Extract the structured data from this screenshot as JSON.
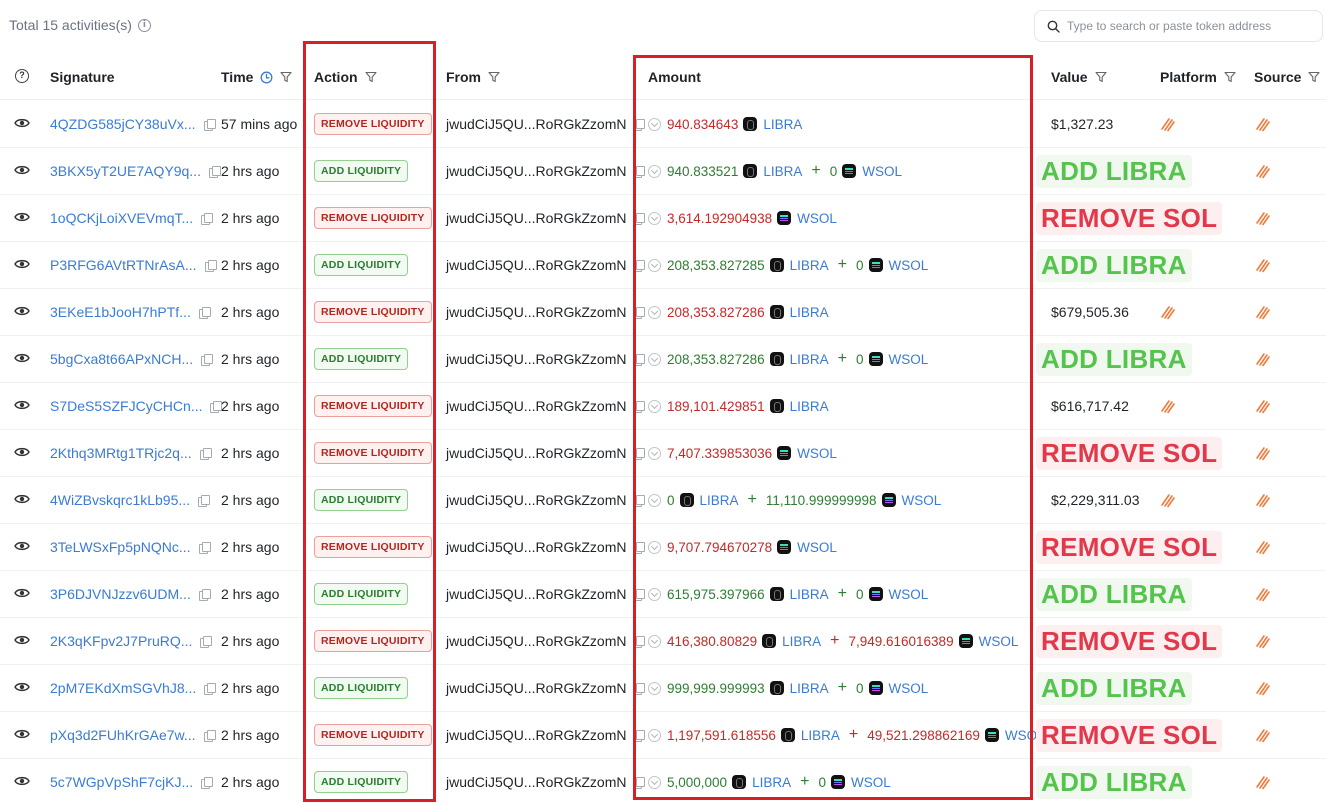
{
  "header": {
    "total_label": "Total 15 activities(s)",
    "search_placeholder": "Type to search or paste token address"
  },
  "columns": {
    "signature": "Signature",
    "time": "Time",
    "action": "Action",
    "from": "From",
    "amount": "Amount",
    "value": "Value",
    "platform": "Platform",
    "source": "Source"
  },
  "colors": {
    "link": "#3a7bd5",
    "remove": "#c62828",
    "add": "#2e7d32",
    "highlight": "#d81f26",
    "big_add": "#55c44d",
    "big_remove": "#e2384a"
  },
  "rows": [
    {
      "sig": "4QZDG585jCY38uVx...",
      "time": "57 mins ago",
      "action": "REMOVE LIQUIDITY",
      "type": "remove",
      "from": "jwudCiJ5QU...RoRGkZzomN",
      "amount": [
        {
          "v": "940.834643",
          "t": "LIBRA"
        }
      ],
      "value": "$1,327.23",
      "big": ""
    },
    {
      "sig": "3BKX5yT2UE7AQY9q...",
      "time": "2 hrs ago",
      "action": "ADD LIQUIDITY",
      "type": "add",
      "from": "jwudCiJ5QU...RoRGkZzomN",
      "amount": [
        {
          "v": "940.833521",
          "t": "LIBRA"
        },
        {
          "v": "0",
          "t": "WSOL"
        }
      ],
      "value": "",
      "big": "ADD LIBRA"
    },
    {
      "sig": "1oQCKjLoiXVEVmqT...",
      "time": "2 hrs ago",
      "action": "REMOVE LIQUIDITY",
      "type": "remove",
      "from": "jwudCiJ5QU...RoRGkZzomN",
      "amount": [
        {
          "v": "3,614.192904938",
          "t": "WSOL"
        }
      ],
      "value": "",
      "big": "REMOVE SOL"
    },
    {
      "sig": "P3RFG6AVtRTNrAsA...",
      "time": "2 hrs ago",
      "action": "ADD LIQUIDITY",
      "type": "add",
      "from": "jwudCiJ5QU...RoRGkZzomN",
      "amount": [
        {
          "v": "208,353.827285",
          "t": "LIBRA"
        },
        {
          "v": "0",
          "t": "WSOL"
        }
      ],
      "value": "",
      "big": "ADD LIBRA"
    },
    {
      "sig": "3EKeE1bJooH7hPTf...",
      "time": "2 hrs ago",
      "action": "REMOVE LIQUIDITY",
      "type": "remove",
      "from": "jwudCiJ5QU...RoRGkZzomN",
      "amount": [
        {
          "v": "208,353.827286",
          "t": "LIBRA"
        }
      ],
      "value": "$679,505.36",
      "big": ""
    },
    {
      "sig": "5bgCxa8t66APxNCH...",
      "time": "2 hrs ago",
      "action": "ADD LIQUIDITY",
      "type": "add",
      "from": "jwudCiJ5QU...RoRGkZzomN",
      "amount": [
        {
          "v": "208,353.827286",
          "t": "LIBRA"
        },
        {
          "v": "0",
          "t": "WSOL"
        }
      ],
      "value": "",
      "big": "ADD LIBRA"
    },
    {
      "sig": "S7DeS5SZFJCyCHCn...",
      "time": "2 hrs ago",
      "action": "REMOVE LIQUIDITY",
      "type": "remove",
      "from": "jwudCiJ5QU...RoRGkZzomN",
      "amount": [
        {
          "v": "189,101.429851",
          "t": "LIBRA"
        }
      ],
      "value": "$616,717.42",
      "big": ""
    },
    {
      "sig": "2Kthq3MRtg1TRjc2q...",
      "time": "2 hrs ago",
      "action": "REMOVE LIQUIDITY",
      "type": "remove",
      "from": "jwudCiJ5QU...RoRGkZzomN",
      "amount": [
        {
          "v": "7,407.339853036",
          "t": "WSOL"
        }
      ],
      "value": "",
      "big": "REMOVE SOL"
    },
    {
      "sig": "4WiZBvskqrc1kLb95...",
      "time": "2 hrs ago",
      "action": "ADD LIQUIDITY",
      "type": "add",
      "from": "jwudCiJ5QU...RoRGkZzomN",
      "amount": [
        {
          "v": "0",
          "t": "LIBRA"
        },
        {
          "v": "11,110.999999998",
          "t": "WSOL"
        }
      ],
      "value": "$2,229,311.03",
      "big": ""
    },
    {
      "sig": "3TeLWSxFp5pNQNc...",
      "time": "2 hrs ago",
      "action": "REMOVE LIQUIDITY",
      "type": "remove",
      "from": "jwudCiJ5QU...RoRGkZzomN",
      "amount": [
        {
          "v": "9,707.794670278",
          "t": "WSOL"
        }
      ],
      "value": "",
      "big": "REMOVE SOL"
    },
    {
      "sig": "3P6DJVNJzzv6UDM...",
      "time": "2 hrs ago",
      "action": "ADD LIQUIDITY",
      "type": "add",
      "from": "jwudCiJ5QU...RoRGkZzomN",
      "amount": [
        {
          "v": "615,975.397966",
          "t": "LIBRA"
        },
        {
          "v": "0",
          "t": "WSOL"
        }
      ],
      "value": "",
      "big": "ADD LIBRA"
    },
    {
      "sig": "2K3qKFpv2J7PruRQ...",
      "time": "2 hrs ago",
      "action": "REMOVE LIQUIDITY",
      "type": "remove",
      "from": "jwudCiJ5QU...RoRGkZzomN",
      "amount": [
        {
          "v": "416,380.80829",
          "t": "LIBRA"
        },
        {
          "v": "7,949.616016389",
          "t": "WSOL"
        }
      ],
      "value": "",
      "big": "REMOVE SOL"
    },
    {
      "sig": "2pM7EKdXmSGVhJ8...",
      "time": "2 hrs ago",
      "action": "ADD LIQUIDITY",
      "type": "add",
      "from": "jwudCiJ5QU...RoRGkZzomN",
      "amount": [
        {
          "v": "999,999.999993",
          "t": "LIBRA"
        },
        {
          "v": "0",
          "t": "WSOL"
        }
      ],
      "value": "",
      "big": "ADD LIBRA"
    },
    {
      "sig": "pXq3d2FUhKrGAe7w...",
      "time": "2 hrs ago",
      "action": "REMOVE LIQUIDITY",
      "type": "remove",
      "from": "jwudCiJ5QU...RoRGkZzomN",
      "amount": [
        {
          "v": "1,197,591.618556",
          "t": "LIBRA"
        },
        {
          "v": "49,521.298862169",
          "t": "WSOL"
        }
      ],
      "value": "",
      "big": "REMOVE SOL"
    },
    {
      "sig": "5c7WGpVpShF7cjKJ...",
      "time": "2 hrs ago",
      "action": "ADD LIQUIDITY",
      "type": "add",
      "from": "jwudCiJ5QU...RoRGkZzomN",
      "amount": [
        {
          "v": "5,000,000",
          "t": "LIBRA"
        },
        {
          "v": "0",
          "t": "WSOL"
        }
      ],
      "value": "",
      "big": "ADD LIBRA"
    }
  ]
}
